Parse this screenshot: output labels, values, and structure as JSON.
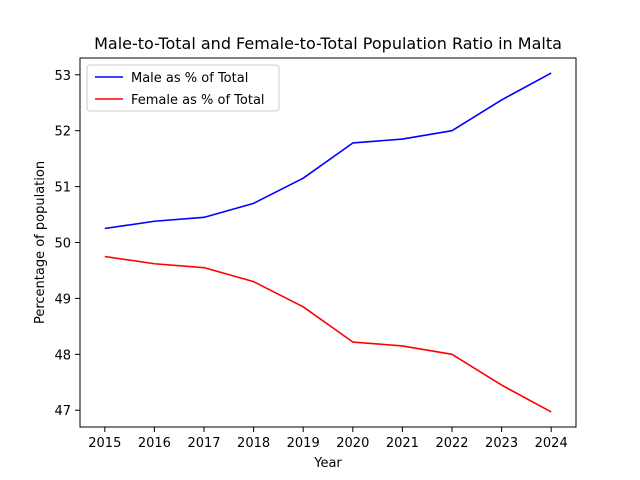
{
  "chart_data": {
    "type": "line",
    "title": "Male-to-Total and Female-to-Total Population Ratio in Malta",
    "xlabel": "Year",
    "ylabel": "Percentage of population",
    "x": [
      2015,
      2016,
      2017,
      2018,
      2019,
      2020,
      2021,
      2022,
      2023,
      2024
    ],
    "xlim": [
      2014.5,
      2024.5
    ],
    "ylim": [
      46.7,
      53.3
    ],
    "yticks": [
      47,
      48,
      49,
      50,
      51,
      52,
      53
    ],
    "grid": false,
    "legend_position": "upper-left",
    "series": [
      {
        "name": "Male as % of Total",
        "color": "#0000ff",
        "values": [
          50.25,
          50.38,
          50.45,
          50.7,
          51.15,
          51.78,
          51.85,
          52.0,
          52.55,
          53.03
        ]
      },
      {
        "name": "Female as % of Total",
        "color": "#ff0000",
        "values": [
          49.75,
          49.62,
          49.55,
          49.3,
          48.85,
          48.22,
          48.15,
          48.0,
          47.45,
          46.97
        ]
      }
    ]
  }
}
